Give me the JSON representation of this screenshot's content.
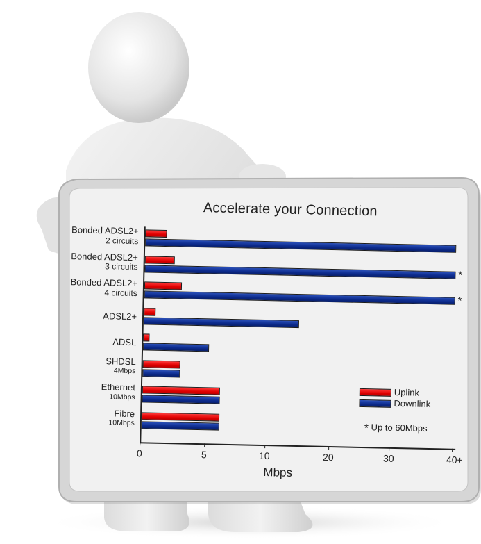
{
  "chart_data": {
    "type": "bar",
    "orientation": "horizontal",
    "title": "Accelerate your Connection",
    "xlabel": "Mbps",
    "ylabel": "",
    "xlim": [
      0,
      40
    ],
    "xticks": [
      "0",
      "5",
      "10",
      "20",
      "30",
      "40+"
    ],
    "categories": [
      {
        "line1": "Bonded ADSL2+",
        "line2": "2 circuits"
      },
      {
        "line1": "Bonded ADSL2+",
        "line2": "3 circuits"
      },
      {
        "line1": "Bonded ADSL2+",
        "line2": "4 circuits"
      },
      {
        "line1": "ADSL2+",
        "line2": ""
      },
      {
        "line1": "ADSL",
        "line2": ""
      },
      {
        "line1": "SHDSL",
        "line2": "4Mbps"
      },
      {
        "line1": "Ethernet",
        "line2": "10Mbps"
      },
      {
        "line1": "Fibre",
        "line2": "10Mbps"
      }
    ],
    "series": [
      {
        "name": "Uplink",
        "color": "#e80000",
        "values": [
          2.8,
          3.8,
          4.8,
          1.5,
          0.8,
          4.8,
          10,
          10
        ]
      },
      {
        "name": "Downlink",
        "color": "#0c2a8c",
        "values": [
          40,
          40,
          40,
          20,
          8.5,
          4.8,
          10,
          10
        ]
      }
    ],
    "starred_categories": [
      1,
      2
    ],
    "star_symbol": "*",
    "footnote": "Up to 60Mbps",
    "legend_position": "bottom-right",
    "grid": false
  }
}
